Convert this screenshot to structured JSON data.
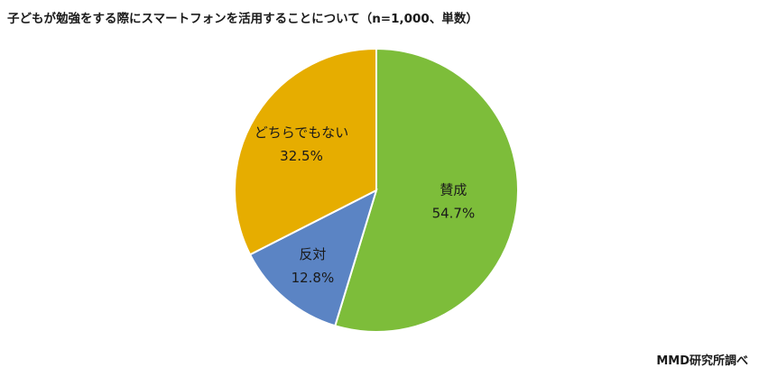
{
  "chart_data": {
    "type": "pie",
    "title": "子どもが勉強をする際にスマートフォンを活用することについて（n=1,000、単数）",
    "source": "MMD研究所調べ",
    "slices": [
      {
        "label": "賛成",
        "value": 54.7,
        "display": "54.7%",
        "color": "#7dbd3a"
      },
      {
        "label": "反対",
        "value": 12.8,
        "display": "12.8%",
        "color": "#5b84c4"
      },
      {
        "label": "どちらでもない",
        "value": 32.5,
        "display": "32.5%",
        "color": "#e6ad00"
      }
    ]
  }
}
